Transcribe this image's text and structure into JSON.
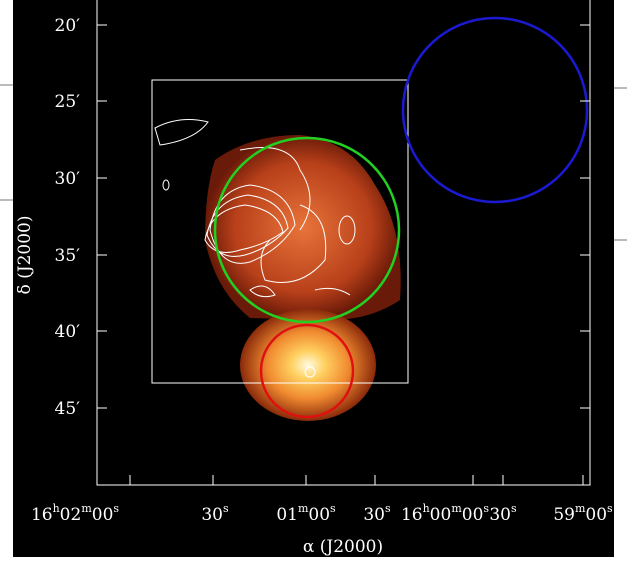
{
  "axes": {
    "x_label": "α (J2000)",
    "y_label": "δ (J2000)",
    "y_ticks": [
      "20′",
      "25′",
      "30′",
      "35′",
      "40′",
      "45′"
    ],
    "x_ticks": [
      {
        "parts": [
          "16",
          "h",
          "02",
          "m",
          "00",
          "s"
        ]
      },
      {
        "parts": [
          "30",
          "s"
        ]
      },
      {
        "parts": [
          "01",
          "m",
          "00",
          "s"
        ]
      },
      {
        "parts": [
          "30",
          "s"
        ]
      },
      {
        "parts": [
          "16",
          "h",
          "00",
          "m",
          "00",
          "s"
        ]
      },
      {
        "parts": [
          "30",
          "s"
        ]
      },
      {
        "parts": [
          "59",
          "m",
          "00",
          "s"
        ]
      }
    ]
  }
}
